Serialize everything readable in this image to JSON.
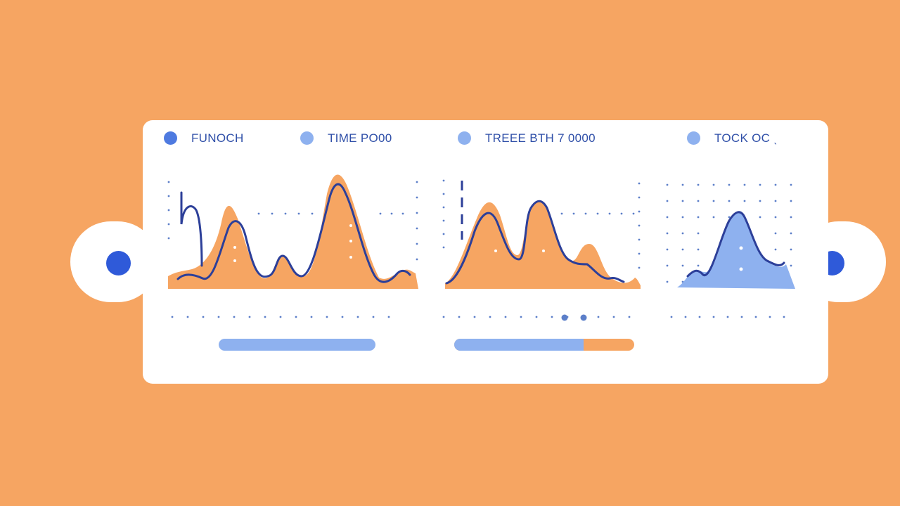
{
  "legend": [
    {
      "label": "FUNOCH",
      "dot_color": "#4e7ae0"
    },
    {
      "label": "TIME PO00",
      "dot_color": "#8eb1ef"
    },
    {
      "label": "TREEE BTH  7  0000",
      "dot_color": "#8eb1ef"
    },
    {
      "label": "TOCK  OC  ˎ",
      "dot_color": "#8eb1ef"
    }
  ],
  "progress": [
    {
      "blue_fraction": 1.0,
      "orange_fraction": 0.0
    },
    {
      "blue_fraction": 0.72,
      "orange_fraction": 0.28
    }
  ],
  "colors": {
    "background": "#f6a562",
    "panel": "#ffffff",
    "orange_fill": "#f6a562",
    "blue_line": "#2c3f99",
    "blue_fill": "#8eb1ef",
    "dot": "#5c7fc9",
    "knob": "#2f5ad9"
  }
}
